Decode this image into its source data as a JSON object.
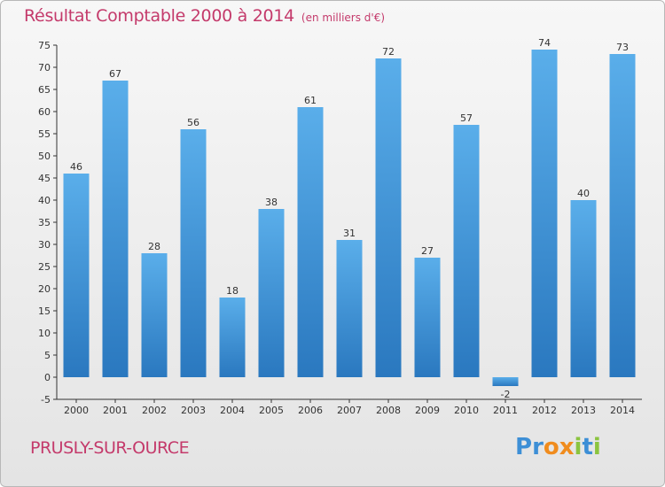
{
  "title": "Résultat Comptable 2000 à 2014",
  "subtitle": "(en milliers d'€)",
  "commune": "PRUSLY-SUR-OURCE",
  "logo": {
    "text": "Proxiti",
    "letters": [
      "P",
      "r",
      "o",
      "x",
      "i",
      "t",
      "i"
    ],
    "colors": [
      "#3d8fd6",
      "#3d8fd6",
      "#f08c1e",
      "#f08c1e",
      "#8bc43f",
      "#3d8fd6",
      "#8bc43f"
    ]
  },
  "colors": {
    "accent": "#c43a6b",
    "bar_light": "#5aaeea",
    "bar_dark": "#2a78bf"
  },
  "chart_data": {
    "type": "bar",
    "categories": [
      "2000",
      "2001",
      "2002",
      "2003",
      "2004",
      "2005",
      "2006",
      "2007",
      "2008",
      "2009",
      "2010",
      "2011",
      "2012",
      "2013",
      "2014"
    ],
    "values": [
      46,
      67,
      28,
      56,
      18,
      38,
      61,
      31,
      72,
      27,
      57,
      -2,
      74,
      40,
      73
    ],
    "ylim": [
      -5,
      75
    ],
    "yticks": [
      -5,
      0,
      5,
      10,
      15,
      20,
      25,
      30,
      35,
      40,
      45,
      50,
      55,
      60,
      65,
      70,
      75
    ],
    "title": "Résultat Comptable 2000 à 2014",
    "xlabel": "",
    "ylabel": "",
    "grid": false,
    "legend": "none",
    "data_labels": true
  }
}
